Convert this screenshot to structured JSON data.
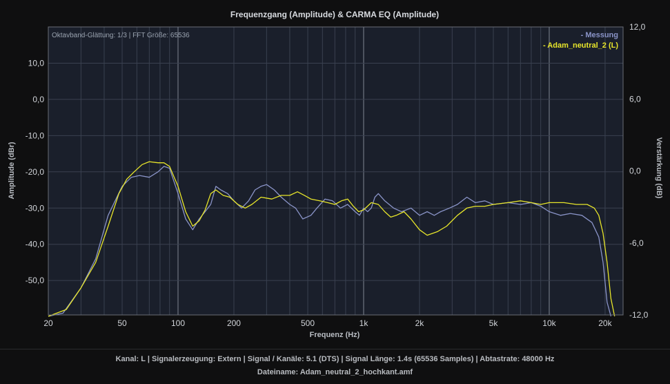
{
  "chart_data": {
    "type": "line",
    "title": "Frequenzgang (Amplitude) & CARMA EQ (Amplitude)",
    "xlabel": "Frequenz (Hz)",
    "ylabel": "Amplitude (dBr)",
    "y2label": "Verstärkung (dB)",
    "xscale": "log",
    "xlim": [
      20,
      25000
    ],
    "ylim": [
      -59.5,
      20
    ],
    "y2lim": [
      -12,
      12
    ],
    "grid": true,
    "legend_position": "top-right",
    "annotation": "Oktavband-Glättung: 1/3 | FFT Größe: 65536",
    "x_ticks": [
      {
        "value": 20,
        "label": "20"
      },
      {
        "value": 50,
        "label": "50"
      },
      {
        "value": 100,
        "label": "100"
      },
      {
        "value": 200,
        "label": "200"
      },
      {
        "value": 500,
        "label": "500"
      },
      {
        "value": 1000,
        "label": "1k"
      },
      {
        "value": 2000,
        "label": "2k"
      },
      {
        "value": 5000,
        "label": "5k"
      },
      {
        "value": 10000,
        "label": "10k"
      },
      {
        "value": 20000,
        "label": "20k"
      }
    ],
    "y_ticks": [
      {
        "value": 10,
        "label": "10,0"
      },
      {
        "value": 0,
        "label": "0,0"
      },
      {
        "value": -10,
        "label": "-10,0"
      },
      {
        "value": -20,
        "label": "-20,0"
      },
      {
        "value": -30,
        "label": "-30,0"
      },
      {
        "value": -40,
        "label": "-40,0"
      },
      {
        "value": -50,
        "label": "-50,0"
      }
    ],
    "y2_ticks": [
      {
        "value": 12,
        "label": "12,0"
      },
      {
        "value": 6,
        "label": "6,0"
      },
      {
        "value": 0,
        "label": "0,0"
      },
      {
        "value": -6,
        "label": "-6,0"
      },
      {
        "value": -12,
        "label": "-12,0"
      }
    ],
    "series": [
      {
        "name": "- Messung",
        "color": "#8a94c8",
        "points": [
          [
            20,
            -62
          ],
          [
            24,
            -59
          ],
          [
            30,
            -52
          ],
          [
            36,
            -44
          ],
          [
            42,
            -32
          ],
          [
            50,
            -24
          ],
          [
            56,
            -21.5
          ],
          [
            62,
            -21
          ],
          [
            70,
            -21.5
          ],
          [
            78,
            -20
          ],
          [
            84,
            -18.5
          ],
          [
            90,
            -19
          ],
          [
            100,
            -26
          ],
          [
            110,
            -33
          ],
          [
            120,
            -36
          ],
          [
            130,
            -33
          ],
          [
            140,
            -31
          ],
          [
            150,
            -29
          ],
          [
            160,
            -24
          ],
          [
            170,
            -25
          ],
          [
            185,
            -26
          ],
          [
            200,
            -28
          ],
          [
            220,
            -30
          ],
          [
            240,
            -28
          ],
          [
            260,
            -25
          ],
          [
            280,
            -24
          ],
          [
            300,
            -23.5
          ],
          [
            330,
            -25
          ],
          [
            360,
            -27
          ],
          [
            400,
            -29
          ],
          [
            430,
            -30
          ],
          [
            470,
            -33
          ],
          [
            520,
            -32
          ],
          [
            560,
            -30
          ],
          [
            620,
            -27.5
          ],
          [
            680,
            -28
          ],
          [
            750,
            -30
          ],
          [
            820,
            -29
          ],
          [
            900,
            -31
          ],
          [
            950,
            -32
          ],
          [
            1000,
            -30
          ],
          [
            1050,
            -31
          ],
          [
            1100,
            -30
          ],
          [
            1150,
            -27
          ],
          [
            1200,
            -26
          ],
          [
            1300,
            -28
          ],
          [
            1450,
            -30
          ],
          [
            1600,
            -31
          ],
          [
            1800,
            -30
          ],
          [
            2000,
            -32
          ],
          [
            2200,
            -31
          ],
          [
            2400,
            -32
          ],
          [
            2600,
            -31
          ],
          [
            2900,
            -30
          ],
          [
            3200,
            -29
          ],
          [
            3600,
            -27
          ],
          [
            4000,
            -28.5
          ],
          [
            4500,
            -28
          ],
          [
            5000,
            -29
          ],
          [
            6000,
            -28.5
          ],
          [
            7000,
            -29
          ],
          [
            8000,
            -28.5
          ],
          [
            9000,
            -29.5
          ],
          [
            10000,
            -31
          ],
          [
            11500,
            -32
          ],
          [
            13000,
            -31.5
          ],
          [
            15000,
            -32
          ],
          [
            17000,
            -34
          ],
          [
            18500,
            -38
          ],
          [
            19500,
            -45
          ],
          [
            20500,
            -56
          ],
          [
            21500,
            -62
          ]
        ]
      },
      {
        "name": "- Adam_neutral_2 (L)",
        "color": "#e8e62a",
        "points": [
          [
            20,
            -61
          ],
          [
            25,
            -58
          ],
          [
            30,
            -52
          ],
          [
            36,
            -45
          ],
          [
            42,
            -35
          ],
          [
            48,
            -26
          ],
          [
            53,
            -22
          ],
          [
            58,
            -20
          ],
          [
            64,
            -18
          ],
          [
            70,
            -17.2
          ],
          [
            78,
            -17.5
          ],
          [
            84,
            -17.5
          ],
          [
            90,
            -18.5
          ],
          [
            100,
            -24
          ],
          [
            110,
            -31
          ],
          [
            120,
            -35
          ],
          [
            130,
            -33.5
          ],
          [
            140,
            -30.5
          ],
          [
            150,
            -26
          ],
          [
            160,
            -25
          ],
          [
            175,
            -26.5
          ],
          [
            190,
            -27
          ],
          [
            210,
            -29
          ],
          [
            230,
            -30
          ],
          [
            250,
            -29
          ],
          [
            280,
            -27
          ],
          [
            320,
            -27.5
          ],
          [
            360,
            -26.5
          ],
          [
            400,
            -26.5
          ],
          [
            440,
            -25.5
          ],
          [
            480,
            -26.5
          ],
          [
            520,
            -27.5
          ],
          [
            580,
            -28
          ],
          [
            640,
            -28.5
          ],
          [
            700,
            -29
          ],
          [
            760,
            -28
          ],
          [
            820,
            -27.5
          ],
          [
            880,
            -29.5
          ],
          [
            940,
            -31
          ],
          [
            1000,
            -30.5
          ],
          [
            1100,
            -28.5
          ],
          [
            1200,
            -29
          ],
          [
            1300,
            -31
          ],
          [
            1400,
            -32.5
          ],
          [
            1500,
            -32
          ],
          [
            1650,
            -31
          ],
          [
            1800,
            -33
          ],
          [
            2000,
            -36
          ],
          [
            2200,
            -37.5
          ],
          [
            2500,
            -36.5
          ],
          [
            2800,
            -35
          ],
          [
            3200,
            -32
          ],
          [
            3600,
            -30
          ],
          [
            4000,
            -29.5
          ],
          [
            4500,
            -29.5
          ],
          [
            5000,
            -29
          ],
          [
            6000,
            -28.5
          ],
          [
            7000,
            -28
          ],
          [
            8000,
            -28.5
          ],
          [
            9000,
            -29
          ],
          [
            10000,
            -28.5
          ],
          [
            12000,
            -28.5
          ],
          [
            14000,
            -29
          ],
          [
            16000,
            -29
          ],
          [
            17500,
            -30
          ],
          [
            18500,
            -32
          ],
          [
            19500,
            -37
          ],
          [
            20500,
            -45
          ],
          [
            21500,
            -55
          ],
          [
            22500,
            -62
          ]
        ]
      }
    ]
  },
  "footer": {
    "info": "Kanal: L  |  Signalerzeugung: Extern   |  Signal / Kanäle: 5.1 (DTS)  |  Signal Länge: 1.4s (65536 Samples)  |  Abtastrate: 48000 Hz",
    "filename": "Dateiname: Adam_neutral_2_hochkant.amf"
  },
  "colors": {
    "plot_bg": "#1a1f2b",
    "grid": "#3a4150",
    "frame": "#6a6e76"
  }
}
